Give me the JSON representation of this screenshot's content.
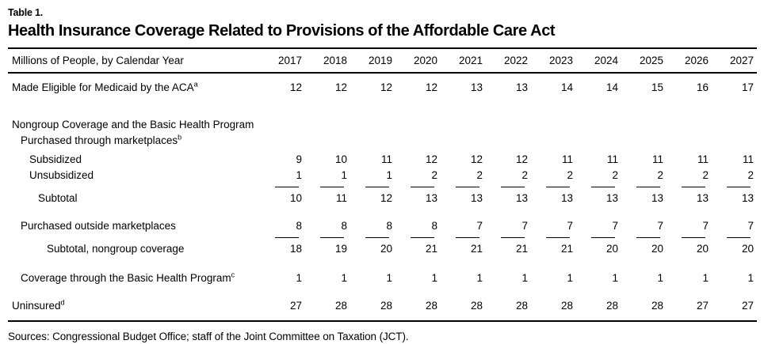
{
  "header": {
    "table_label": "Table 1.",
    "title": "Health Insurance Coverage Related to Provisions of the Affordable Care Act"
  },
  "table": {
    "row_label_header": "Millions of People, by Calendar Year",
    "years": [
      "2017",
      "2018",
      "2019",
      "2020",
      "2021",
      "2022",
      "2023",
      "2024",
      "2025",
      "2026",
      "2027"
    ],
    "rows": [
      {
        "label": "Made Eligible for Medicaid by the ACA",
        "sup": "a",
        "indent": 0,
        "gap": 8,
        "values": [
          12,
          12,
          12,
          12,
          13,
          13,
          14,
          14,
          15,
          16,
          17
        ]
      },
      {
        "label": "Nongroup Coverage and the Basic Health Program",
        "indent": 0,
        "gap": 27,
        "values": []
      },
      {
        "label": "Purchased through marketplaces",
        "sup": "b",
        "indent": 1,
        "gap": 0,
        "values": []
      },
      {
        "label": "Subsidized",
        "indent": 2,
        "gap": 4,
        "values": [
          9,
          10,
          11,
          12,
          12,
          12,
          11,
          11,
          11,
          11,
          11
        ]
      },
      {
        "label": "Unsubsidized",
        "indent": 2,
        "gap": 0,
        "values": [
          1,
          1,
          1,
          2,
          2,
          2,
          2,
          2,
          2,
          2,
          2
        ]
      },
      {
        "label": "Subtotal",
        "indent": 3,
        "gap": 0,
        "rule_above": true,
        "values": [
          10,
          11,
          12,
          13,
          13,
          13,
          13,
          13,
          13,
          13,
          13
        ]
      },
      {
        "label": "Purchased outside marketplaces",
        "indent": 1,
        "gap": 15,
        "values": [
          8,
          8,
          8,
          8,
          7,
          7,
          7,
          7,
          7,
          7,
          7
        ]
      },
      {
        "label": "Subtotal, nongroup coverage",
        "indent": 4,
        "gap": 0,
        "rule_above": true,
        "values": [
          18,
          19,
          20,
          21,
          21,
          21,
          21,
          20,
          20,
          20,
          20
        ]
      },
      {
        "label": "Coverage through the Basic Health Program",
        "sup": "c",
        "indent": 1,
        "gap": 17,
        "values": [
          1,
          1,
          1,
          1,
          1,
          1,
          1,
          1,
          1,
          1,
          1
        ]
      },
      {
        "label": "Uninsured",
        "sup": "d",
        "indent": 0,
        "gap": 15,
        "values": [
          27,
          28,
          28,
          28,
          28,
          28,
          28,
          28,
          28,
          27,
          27
        ]
      }
    ]
  },
  "footer": {
    "sources": "Sources: Congressional Budget Office; staff of the Joint Committee on Taxation (JCT)."
  }
}
